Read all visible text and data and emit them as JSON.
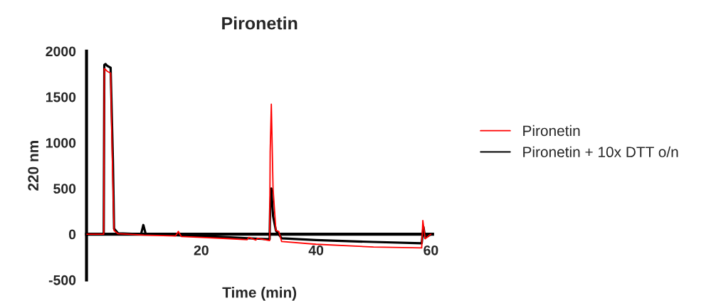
{
  "chart_data": {
    "type": "line",
    "title": "Pironetin",
    "xlabel": "Time (min)",
    "ylabel": "220 nm",
    "xlim": [
      0,
      60.3
    ],
    "xticks": [
      {
        "value": 0,
        "label": null
      },
      20,
      40,
      60
    ],
    "ylim": [
      -500,
      2000
    ],
    "yticks": [
      -500,
      0,
      500,
      1000,
      1500,
      2000
    ],
    "legend": "right",
    "grid": false,
    "marker": "none",
    "line_style": "solid",
    "series": [
      {
        "name": "Pironetin",
        "color": "#ff0000",
        "x": [
          0,
          3.0,
          3.1,
          3.3,
          3.6,
          4.2,
          4.5,
          4.8,
          5.5,
          10,
          15.5,
          16,
          16.5,
          20,
          25,
          28,
          28.3,
          29.5,
          29.8,
          31.9,
          32.0,
          32.2,
          32.5,
          33.0,
          33.5,
          34,
          40,
          50,
          58.4,
          58.6,
          59,
          60
        ],
        "values": [
          0,
          0,
          1810,
          1800,
          1780,
          1760,
          800,
          40,
          5,
          -10,
          -20,
          30,
          -25,
          -35,
          -50,
          -60,
          -35,
          -65,
          -45,
          -70,
          900,
          1420,
          500,
          40,
          30,
          -80,
          -110,
          -140,
          -150,
          150,
          -50,
          0
        ]
      },
      {
        "name": "Pironetin + 10x DTT o/n",
        "color": "#000000",
        "x": [
          0,
          3.0,
          3.1,
          3.3,
          3.6,
          4.2,
          4.6,
          4.8,
          5.5,
          9.5,
          9.9,
          10.3,
          15,
          20,
          25,
          30,
          31.9,
          32.0,
          32.2,
          32.5,
          33.0,
          34,
          40,
          50,
          58.4,
          58.7,
          59,
          60
        ],
        "values": [
          0,
          0,
          1850,
          1860,
          1840,
          1820,
          800,
          60,
          10,
          0,
          100,
          5,
          -10,
          -20,
          -35,
          -50,
          -55,
          300,
          500,
          200,
          40,
          -45,
          -65,
          -85,
          -100,
          80,
          -40,
          0
        ]
      }
    ]
  }
}
